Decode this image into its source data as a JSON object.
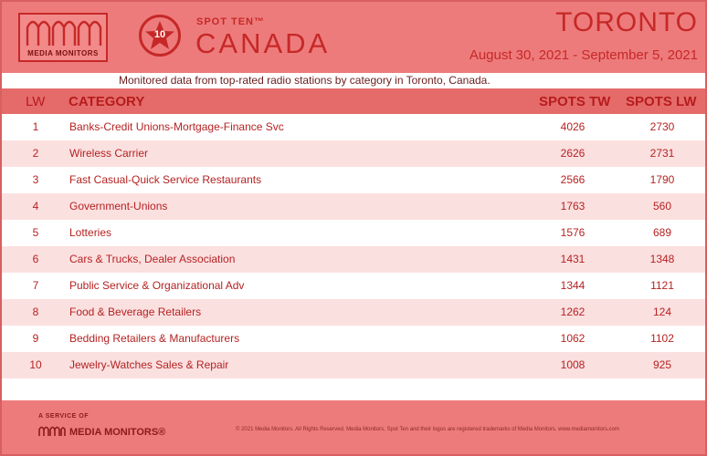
{
  "brand": {
    "logo_text": "MEDIA MONITORS",
    "spot_ten": "SPOT TEN™",
    "badge_number": "10",
    "country": "CANADA"
  },
  "market": {
    "city": "TORONTO",
    "date_range": "August 30, 2021 - September 5, 2021"
  },
  "subtitle": "Monitored data from top-rated radio stations by category in Toronto, Canada.",
  "columns": {
    "lw": "LW",
    "category": "CATEGORY",
    "spots_tw": "SPOTS TW",
    "spots_lw": "SPOTS LW"
  },
  "rows": [
    {
      "rank": "1",
      "category": "Banks-Credit Unions-Mortgage-Finance Svc",
      "spots_tw": "4026",
      "spots_lw": "2730"
    },
    {
      "rank": "2",
      "category": "Wireless Carrier",
      "spots_tw": "2626",
      "spots_lw": "2731"
    },
    {
      "rank": "3",
      "category": "Fast Casual-Quick Service Restaurants",
      "spots_tw": "2566",
      "spots_lw": "1790"
    },
    {
      "rank": "4",
      "category": "Government-Unions",
      "spots_tw": "1763",
      "spots_lw": "560"
    },
    {
      "rank": "5",
      "category": "Lotteries",
      "spots_tw": "1576",
      "spots_lw": "689"
    },
    {
      "rank": "6",
      "category": "Cars & Trucks, Dealer Association",
      "spots_tw": "1431",
      "spots_lw": "1348"
    },
    {
      "rank": "7",
      "category": "Public Service & Organizational Adv",
      "spots_tw": "1344",
      "spots_lw": "1121"
    },
    {
      "rank": "8",
      "category": "Food & Beverage Retailers",
      "spots_tw": "1262",
      "spots_lw": "124"
    },
    {
      "rank": "9",
      "category": "Bedding Retailers & Manufacturers",
      "spots_tw": "1062",
      "spots_lw": "1102"
    },
    {
      "rank": "10",
      "category": "Jewelry-Watches Sales & Repair",
      "spots_tw": "1008",
      "spots_lw": "925"
    }
  ],
  "footer": {
    "service_label": "A SERVICE OF",
    "logo_text": "MEDIA MONITORS",
    "registered_mark": "®",
    "copyright": "© 2021 Media Monitors. All Rights Reserved. Media Monitors, Spot Ten and their logos are registered trademarks of Media Monitors. www.mediamonitors.com"
  },
  "colors": {
    "background": "#ee7b7b",
    "accent": "#c62828",
    "row_alt": "#fbe0e0"
  }
}
